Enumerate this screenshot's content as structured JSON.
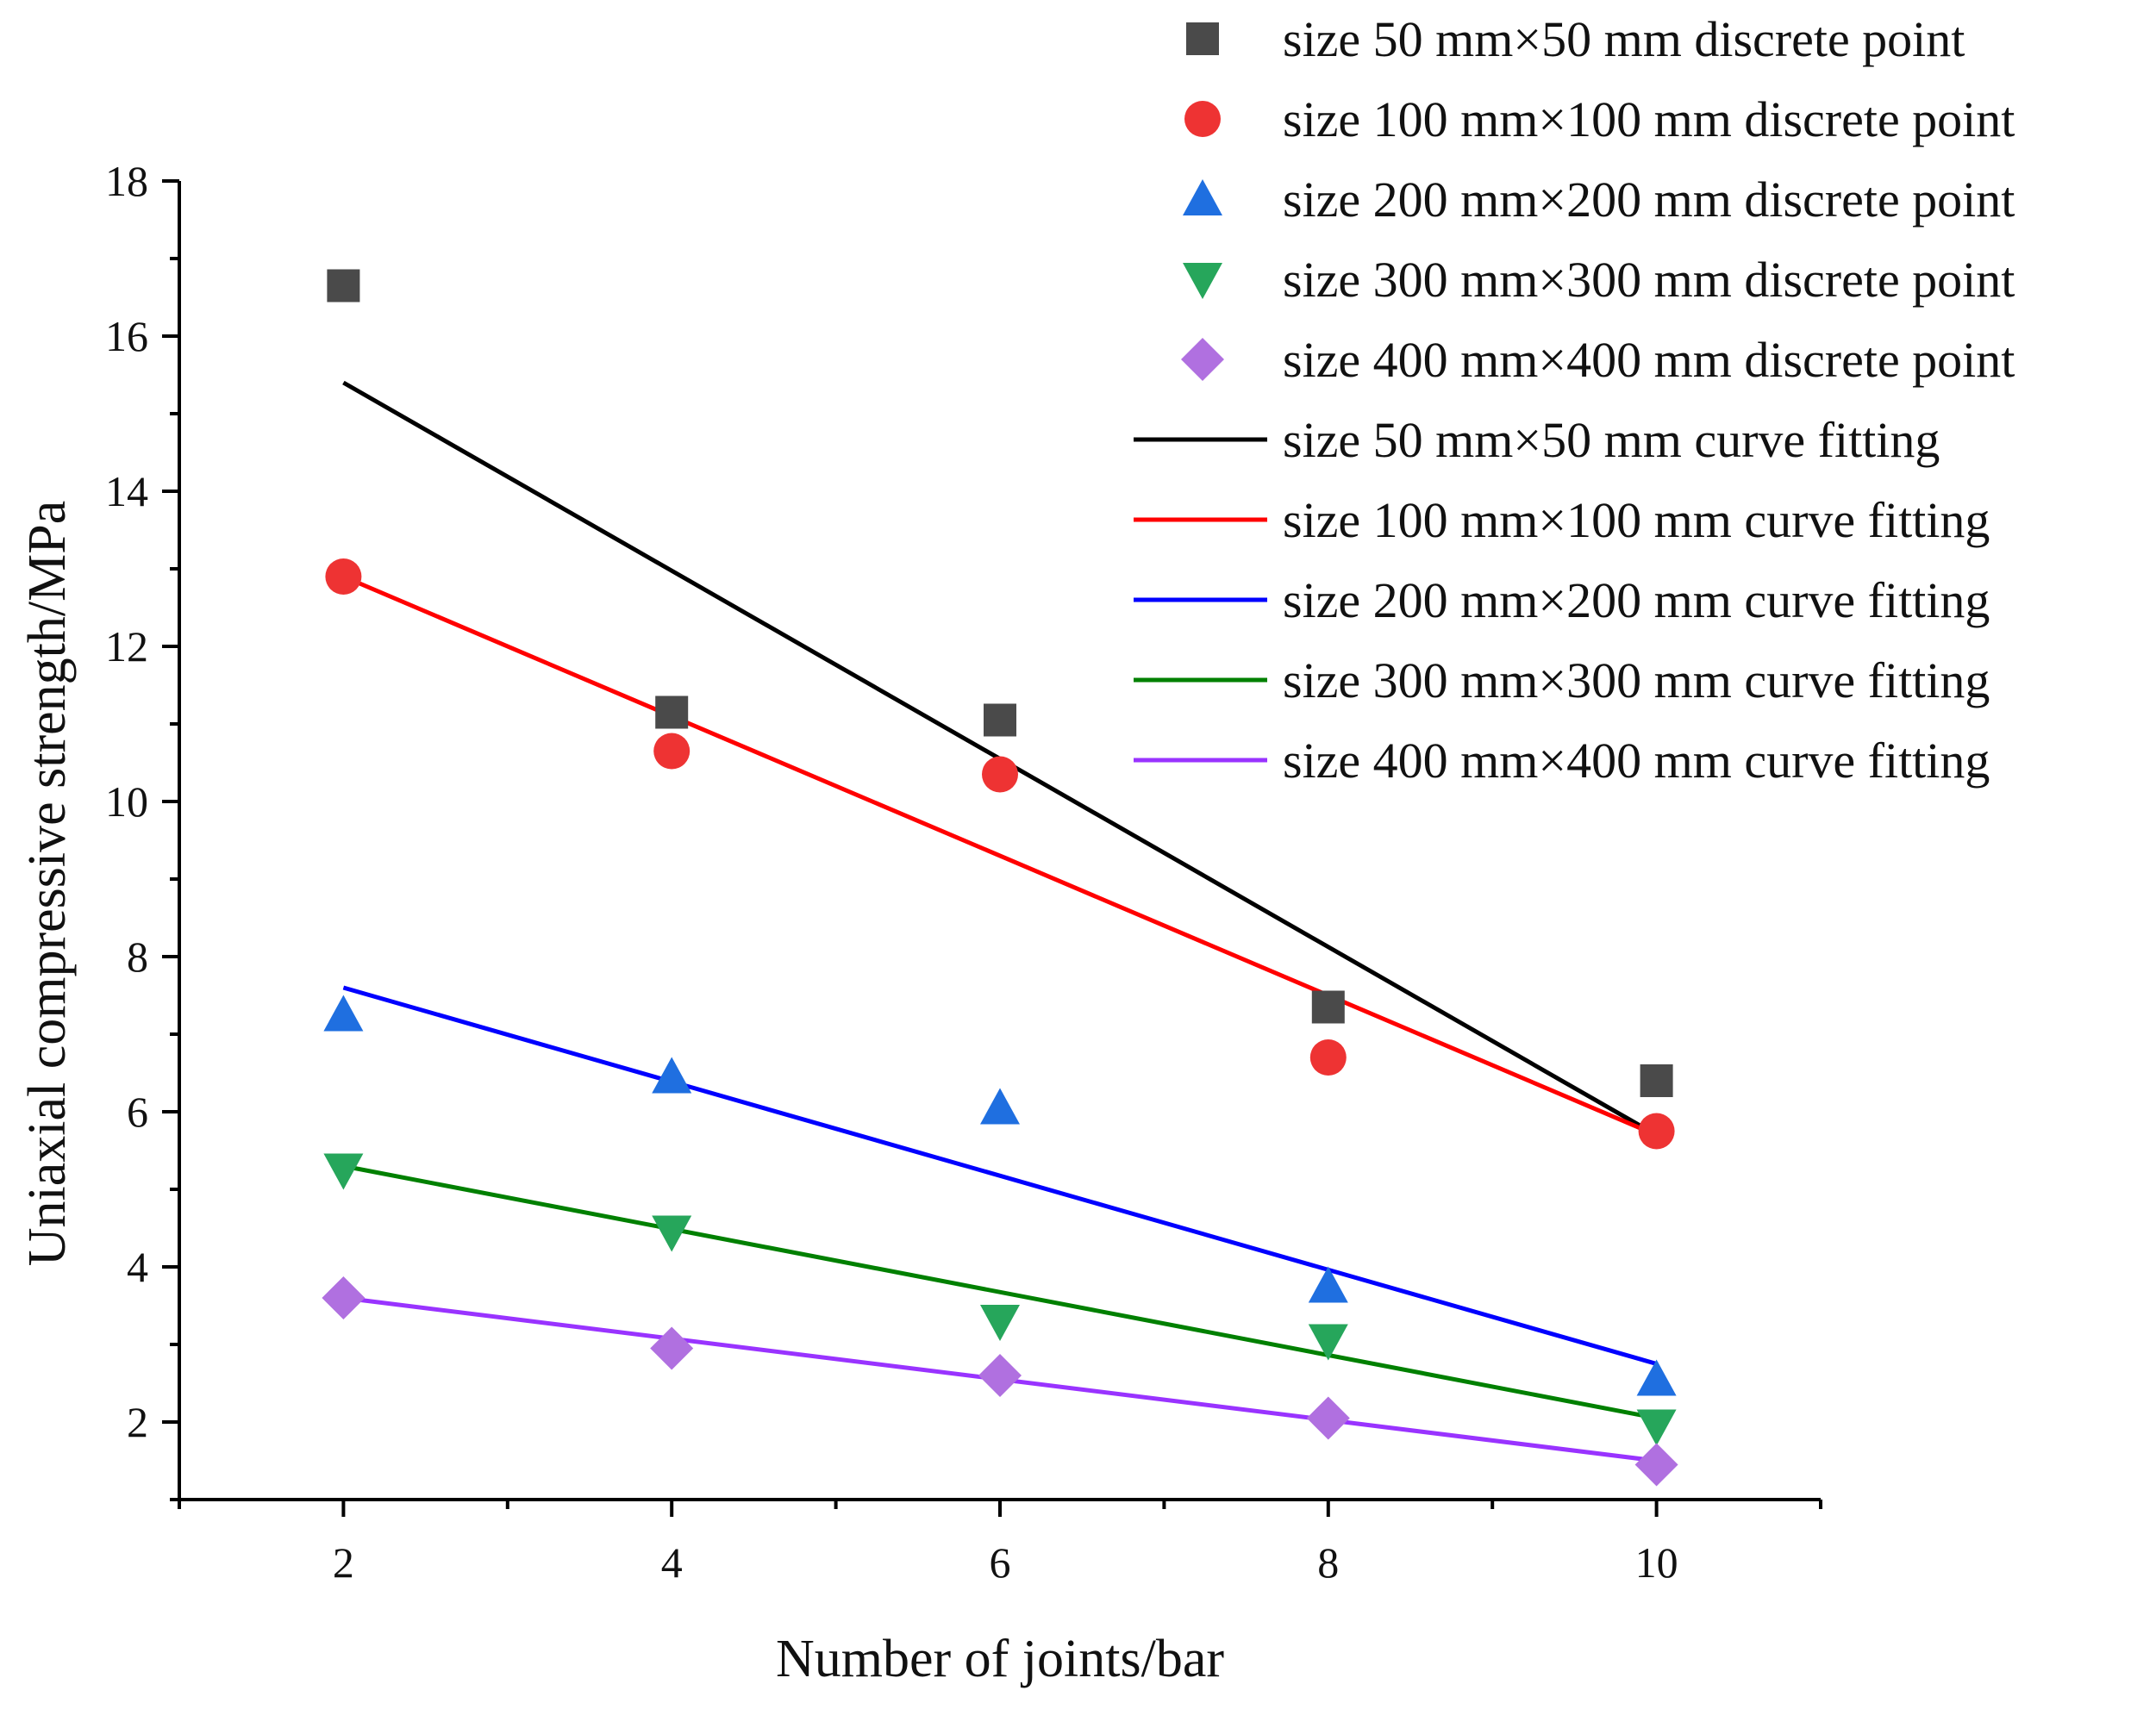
{
  "chart_data": {
    "type": "scatter",
    "title": "",
    "xlabel": "Number of joints/bar",
    "ylabel": "Uniaxial compressive strength/MPa",
    "xlim": [
      1,
      11
    ],
    "ylim": [
      1,
      18
    ],
    "xticks": [
      2,
      4,
      6,
      8,
      10
    ],
    "yticks": [
      2,
      4,
      6,
      8,
      10,
      12,
      14,
      16,
      18
    ],
    "x": [
      2,
      4,
      6,
      8,
      10
    ],
    "legend_position": "top-right",
    "series": [
      {
        "name": "size 50 mm×50 mm discrete point",
        "fit_name": "size 50 mm×50 mm curve fitting",
        "marker": "square",
        "marker_color": "#4a4a4a",
        "line_color": "#000000",
        "values": [
          16.65,
          11.15,
          11.05,
          7.35,
          6.4
        ],
        "fit": [
          15.4,
          5.7
        ]
      },
      {
        "name": "size 100 mm×100 mm discrete point",
        "fit_name": "size 100 mm×100 mm curve fitting",
        "marker": "circle",
        "marker_color": "#ee3333",
        "line_color": "#ff0000",
        "values": [
          12.9,
          10.65,
          10.35,
          6.7,
          5.75
        ],
        "fit": [
          12.9,
          5.7
        ]
      },
      {
        "name": "size 200 mm×200 mm discrete point",
        "fit_name": "size 200 mm×200 mm curve fitting",
        "marker": "triangle-up",
        "marker_color": "#1f6fe0",
        "line_color": "#0000ff",
        "values": [
          7.25,
          6.45,
          6.05,
          3.75,
          2.55
        ],
        "fit": [
          7.6,
          2.75
        ]
      },
      {
        "name": "size 300 mm×300 mm discrete point",
        "fit_name": "size 300 mm×300 mm curve fitting",
        "marker": "triangle-down",
        "marker_color": "#26a65b",
        "line_color": "#008000",
        "values": [
          5.25,
          4.45,
          3.3,
          3.05,
          1.95
        ],
        "fit": [
          5.3,
          2.05
        ]
      },
      {
        "name": "size 400 mm×400 mm discrete point",
        "fit_name": "size 400 mm×400 mm curve fitting",
        "marker": "diamond",
        "marker_color": "#b070e0",
        "line_color": "#9933ff",
        "values": [
          3.6,
          2.95,
          2.6,
          2.05,
          1.45
        ],
        "fit": [
          3.6,
          1.5
        ]
      }
    ]
  }
}
